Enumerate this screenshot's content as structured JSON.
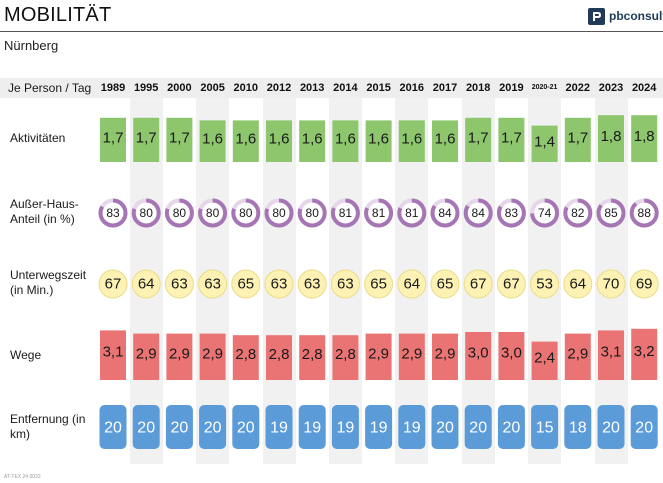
{
  "header": {
    "title": "MOBILITÄT",
    "subtitle": "Nürnberg",
    "logo_text": "pbconsult"
  },
  "footnote": "AT-TEX 24 0032",
  "colors": {
    "activities": "#8dc66d",
    "share_ring": "#a676b4",
    "share_ring_light": "#e6d6ea",
    "travel_time": "#fdf2b4",
    "travel_time_stroke": "#e9dc8a",
    "trips": "#ea7373",
    "distance": "#5b9bd8",
    "logo": "#1f3b57"
  },
  "chart_data": {
    "type": "table",
    "corner_label": "Je Person / Tag",
    "years": [
      "1989",
      "1995",
      "2000",
      "2005",
      "2010",
      "2012",
      "2013",
      "2014",
      "2015",
      "2016",
      "2017",
      "2018",
      "2019",
      "2020-21",
      "2022",
      "2023",
      "2024"
    ],
    "rows": [
      {
        "label": "Aktivitäten",
        "display": "bar",
        "values": [
          1.7,
          1.7,
          1.7,
          1.6,
          1.6,
          1.6,
          1.6,
          1.6,
          1.6,
          1.6,
          1.6,
          1.7,
          1.7,
          1.4,
          1.7,
          1.8,
          1.8
        ],
        "labels": [
          "1,7",
          "1,7",
          "1,7",
          "1,6",
          "1,6",
          "1,6",
          "1,6",
          "1,6",
          "1,6",
          "1,6",
          "1,6",
          "1,7",
          "1,7",
          "1,4",
          "1,7",
          "1,8",
          "1,8"
        ]
      },
      {
        "label": "Außer-Haus-Anteil (in %)",
        "display": "ring",
        "values": [
          83,
          80,
          80,
          80,
          80,
          80,
          80,
          81,
          81,
          81,
          84,
          84,
          83,
          74,
          82,
          85,
          88
        ],
        "labels": [
          "83",
          "80",
          "80",
          "80",
          "80",
          "80",
          "80",
          "81",
          "81",
          "81",
          "84",
          "84",
          "83",
          "74",
          "82",
          "85",
          "88"
        ]
      },
      {
        "label": "Unterwegszeit (in Min.)",
        "display": "bubble",
        "values": [
          67,
          64,
          63,
          63,
          65,
          63,
          63,
          63,
          65,
          64,
          65,
          67,
          67,
          53,
          64,
          70,
          69
        ],
        "labels": [
          "67",
          "64",
          "63",
          "63",
          "65",
          "63",
          "63",
          "63",
          "65",
          "64",
          "65",
          "67",
          "67",
          "53",
          "64",
          "70",
          "69"
        ]
      },
      {
        "label": "Wege",
        "display": "bar",
        "values": [
          3.1,
          2.9,
          2.9,
          2.9,
          2.8,
          2.8,
          2.8,
          2.8,
          2.9,
          2.9,
          2.9,
          3.0,
          3.0,
          2.4,
          2.9,
          3.1,
          3.2
        ],
        "labels": [
          "3,1",
          "2,9",
          "2,9",
          "2,9",
          "2,8",
          "2,8",
          "2,8",
          "2,8",
          "2,9",
          "2,9",
          "2,9",
          "3,0",
          "3,0",
          "2,4",
          "2,9",
          "3,1",
          "3,2"
        ]
      },
      {
        "label": "Entfernung (in km)",
        "display": "tile",
        "values": [
          20,
          20,
          20,
          20,
          20,
          19,
          19,
          19,
          19,
          19,
          20,
          20,
          20,
          15,
          18,
          20,
          20
        ],
        "labels": [
          "20",
          "20",
          "20",
          "20",
          "20",
          "19",
          "19",
          "19",
          "19",
          "19",
          "20",
          "20",
          "20",
          "15",
          "18",
          "20",
          "20"
        ]
      }
    ]
  }
}
